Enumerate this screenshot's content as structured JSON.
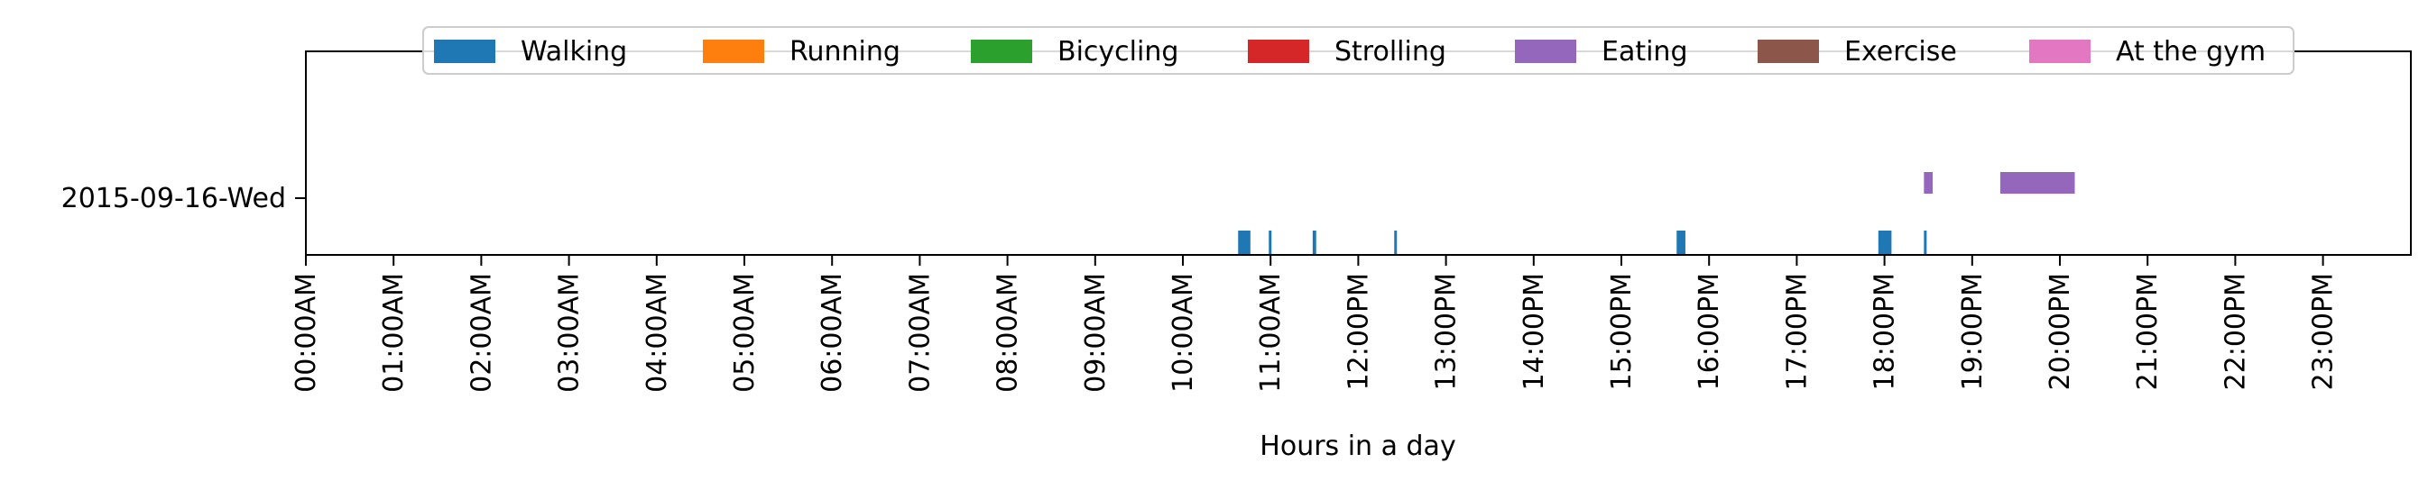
{
  "chart_data": {
    "type": "timeline",
    "title": "",
    "xlabel": "Hours in a day",
    "ylabel": "",
    "x_unit": "hours",
    "xlim": [
      0,
      24
    ],
    "categories": [
      "2015-09-16-Wed"
    ],
    "x_tick_labels": [
      "00:00AM",
      "01:00AM",
      "02:00AM",
      "03:00AM",
      "04:00AM",
      "05:00AM",
      "06:00AM",
      "07:00AM",
      "08:00AM",
      "09:00AM",
      "10:00AM",
      "11:00AM",
      "12:00PM",
      "13:00PM",
      "14:00PM",
      "15:00PM",
      "16:00PM",
      "17:00PM",
      "18:00PM",
      "19:00PM",
      "20:00PM",
      "21:00PM",
      "22:00PM",
      "23:00PM"
    ],
    "legend_position": "top-center",
    "grid": false,
    "series": [
      {
        "name": "Walking",
        "color": "#1f77b4",
        "intervals": [
          [
            10.63,
            10.77
          ],
          [
            10.98,
            11.01
          ],
          [
            11.48,
            11.52
          ],
          [
            12.41,
            12.44
          ],
          [
            15.63,
            15.73
          ],
          [
            17.93,
            18.08
          ],
          [
            18.45,
            18.48
          ]
        ]
      },
      {
        "name": "Running",
        "color": "#ff7f0e",
        "intervals": []
      },
      {
        "name": "Bicycling",
        "color": "#2ca02c",
        "intervals": []
      },
      {
        "name": "Strolling",
        "color": "#d62728",
        "intervals": []
      },
      {
        "name": "Eating",
        "color": "#9467bd",
        "intervals": [
          [
            18.45,
            18.55
          ],
          [
            19.32,
            20.17
          ]
        ]
      },
      {
        "name": "Exercise",
        "color": "#8c564b",
        "intervals": []
      },
      {
        "name": "At the gym",
        "color": "#e377c2",
        "intervals": []
      }
    ]
  }
}
